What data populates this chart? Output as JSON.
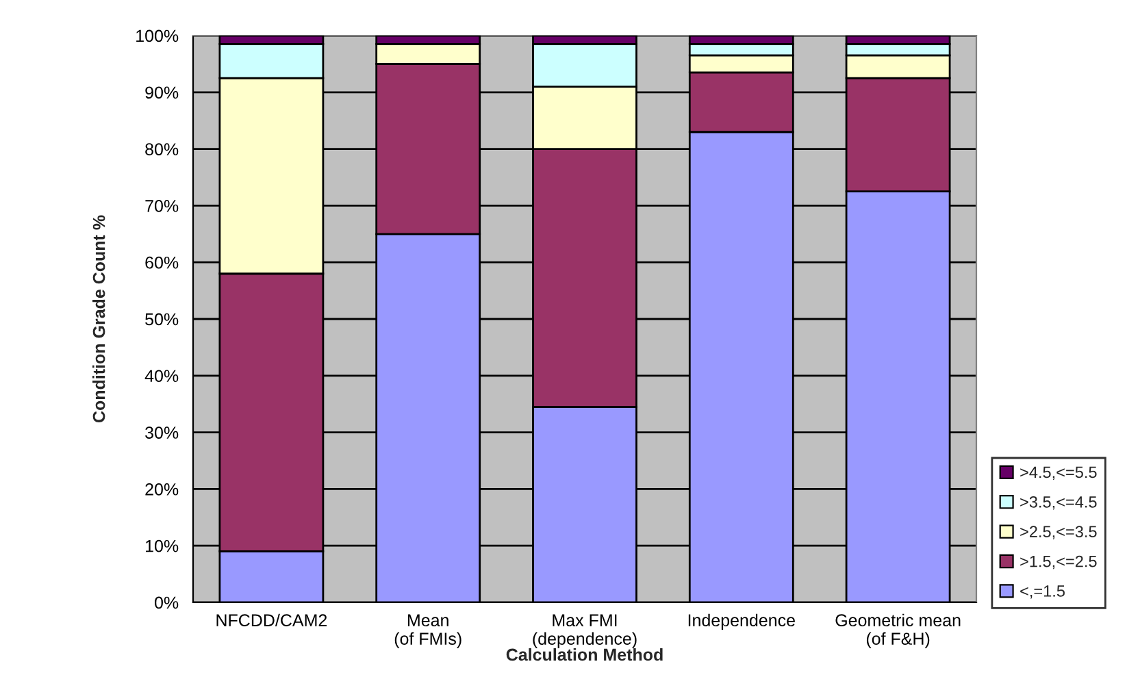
{
  "chart_data": {
    "type": "bar",
    "stacked": true,
    "xlabel": "Calculation Method",
    "ylabel": "Condition Grade Count %",
    "categories": [
      "NFCDD/CAM2",
      "Mean\n(of FMIs)",
      "Max FMI\n(dependence)",
      "Independence",
      "Geometric mean\n(of F&H)"
    ],
    "series": [
      {
        "name": "<,=1.5",
        "color": "#9999ff",
        "values": [
          9,
          65,
          34.5,
          83,
          72.5
        ]
      },
      {
        "name": ">1.5,<=2.5",
        "color": "#993366",
        "values": [
          49,
          30,
          45.5,
          10.5,
          20
        ]
      },
      {
        "name": ">2.5,<=3.5",
        "color": "#ffffcc",
        "values": [
          34.5,
          3.5,
          11,
          3,
          4
        ]
      },
      {
        "name": ">3.5,<=4.5",
        "color": "#ccffff",
        "values": [
          6,
          0,
          7.5,
          2,
          2
        ]
      },
      {
        "name": ">4.5,<=5.5",
        "color": "#660066",
        "values": [
          1.5,
          1.5,
          1.5,
          1.5,
          1.5
        ]
      }
    ],
    "ylim": [
      0,
      100
    ],
    "yticks": [
      {
        "value": 0,
        "label": "0%"
      },
      {
        "value": 10,
        "label": "10%"
      },
      {
        "value": 20,
        "label": "20%"
      },
      {
        "value": 30,
        "label": "30%"
      },
      {
        "value": 40,
        "label": "40%"
      },
      {
        "value": 50,
        "label": "50%"
      },
      {
        "value": 60,
        "label": "60%"
      },
      {
        "value": 70,
        "label": "70%"
      },
      {
        "value": 80,
        "label": "80%"
      },
      {
        "value": 90,
        "label": "90%"
      },
      {
        "value": 100,
        "label": "100%"
      }
    ],
    "grid": "y",
    "legend": "right"
  }
}
